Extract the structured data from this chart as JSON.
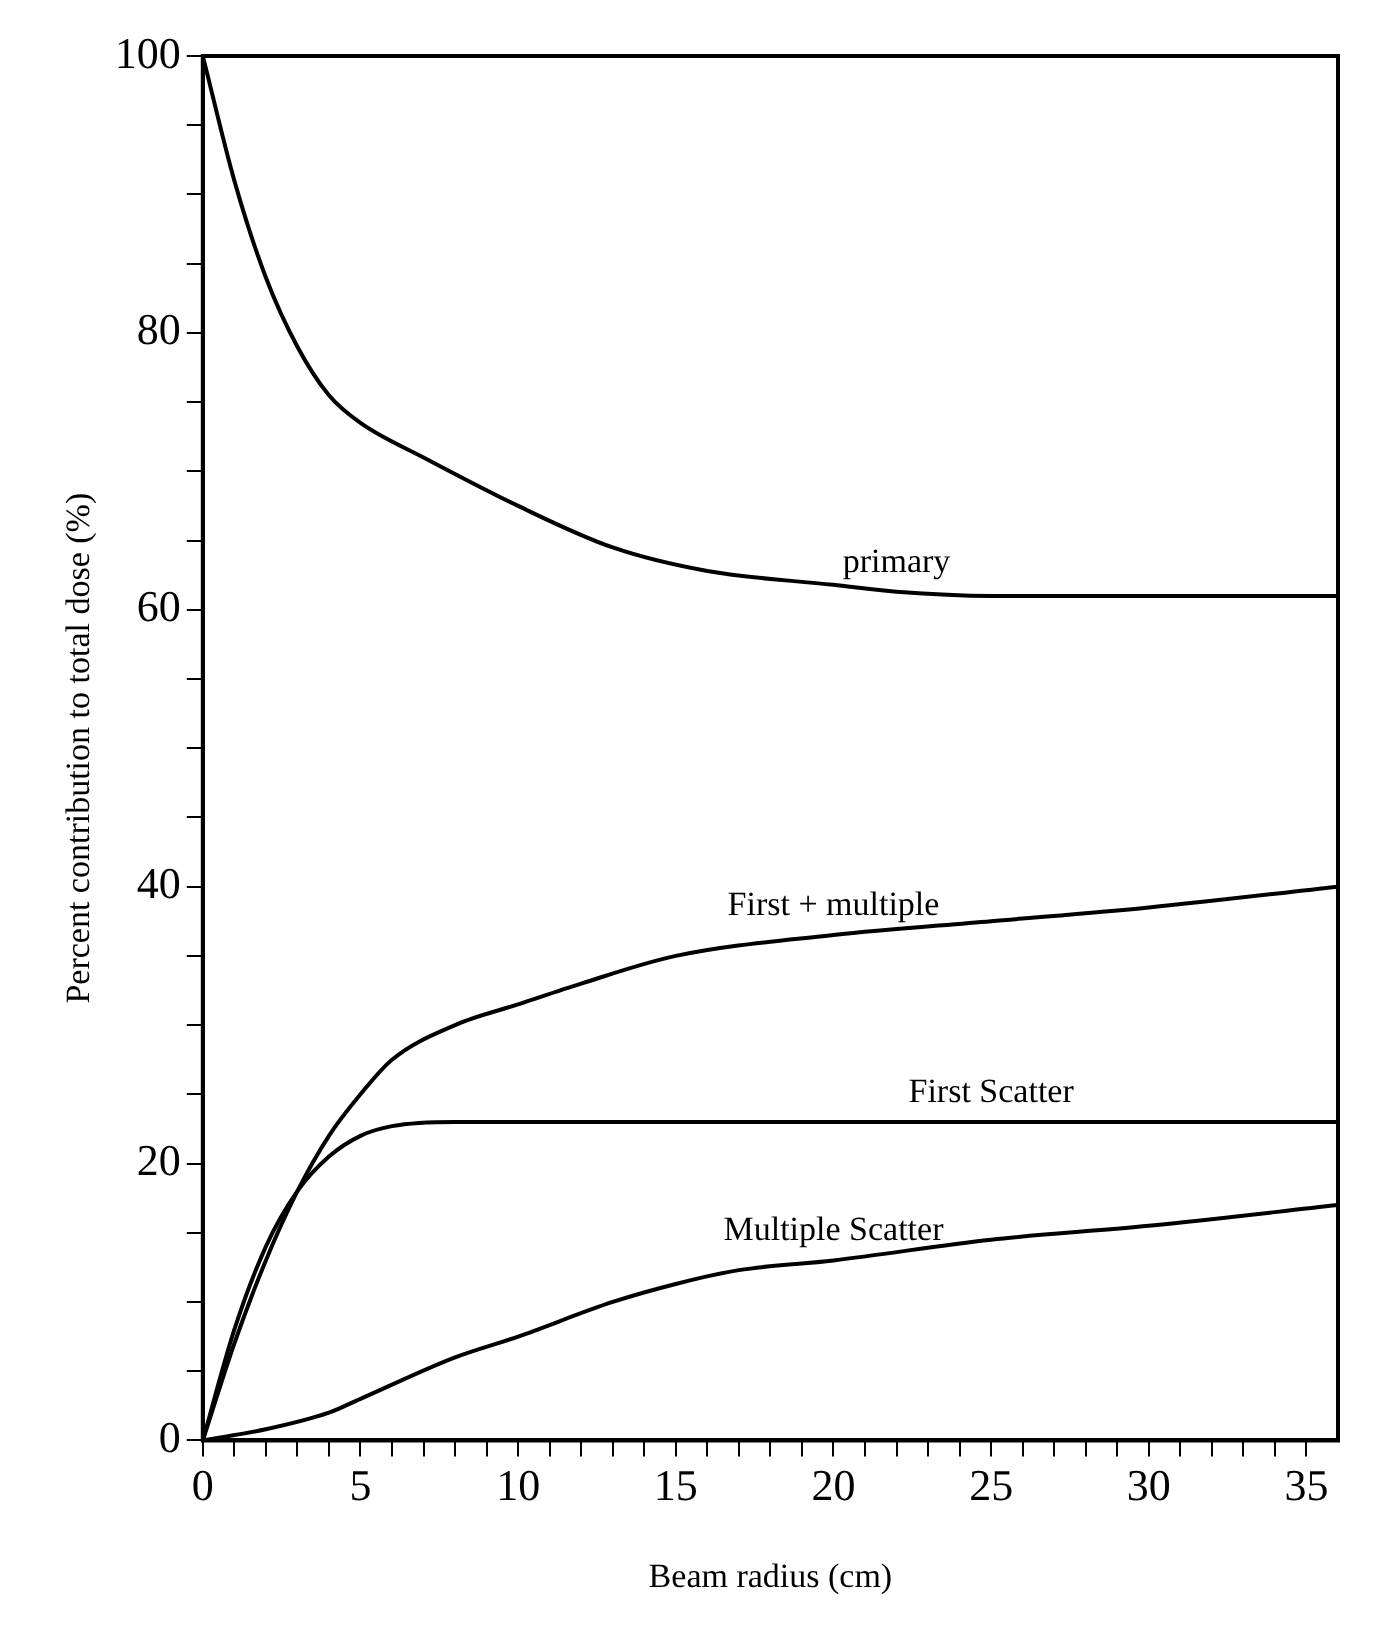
{
  "chart_data": {
    "type": "line",
    "xlabel": "Beam radius (cm)",
    "ylabel": "Percent contribution to total dose (%)",
    "xlim": [
      0,
      36
    ],
    "ylim": [
      0,
      100
    ],
    "xticks": [
      0,
      {
        "value": 1,
        "label": null
      },
      {
        "value": 2,
        "label": null
      },
      {
        "value": 3,
        "label": null
      },
      {
        "value": 4,
        "label": null
      },
      5,
      {
        "value": 6,
        "label": null
      },
      {
        "value": 7,
        "label": null
      },
      {
        "value": 8,
        "label": null
      },
      {
        "value": 9,
        "label": null
      },
      10,
      {
        "value": 11,
        "label": null
      },
      {
        "value": 12,
        "label": null
      },
      {
        "value": 13,
        "label": null
      },
      {
        "value": 14,
        "label": null
      },
      15,
      {
        "value": 16,
        "label": null
      },
      {
        "value": 17,
        "label": null
      },
      {
        "value": 18,
        "label": null
      },
      {
        "value": 19,
        "label": null
      },
      20,
      {
        "value": 21,
        "label": null
      },
      {
        "value": 22,
        "label": null
      },
      {
        "value": 23,
        "label": null
      },
      {
        "value": 24,
        "label": null
      },
      25,
      {
        "value": 26,
        "label": null
      },
      {
        "value": 27,
        "label": null
      },
      {
        "value": 28,
        "label": null
      },
      {
        "value": 29,
        "label": null
      },
      30,
      {
        "value": 31,
        "label": null
      },
      {
        "value": 32,
        "label": null
      },
      {
        "value": 33,
        "label": null
      },
      {
        "value": 34,
        "label": null
      },
      35
    ],
    "yticks": [
      0,
      {
        "value": 5,
        "label": null
      },
      {
        "value": 10,
        "label": null
      },
      {
        "value": 15,
        "label": null
      },
      20,
      {
        "value": 25,
        "label": null
      },
      {
        "value": 30,
        "label": null
      },
      {
        "value": 35,
        "label": null
      },
      40,
      {
        "value": 45,
        "label": null
      },
      {
        "value": 50,
        "label": null
      },
      {
        "value": 55,
        "label": null
      },
      60,
      {
        "value": 65,
        "label": null
      },
      {
        "value": 70,
        "label": null
      },
      {
        "value": 75,
        "label": null
      },
      80,
      {
        "value": 85,
        "label": null
      },
      {
        "value": 90,
        "label": null
      },
      {
        "value": 95,
        "label": null
      },
      100
    ],
    "grid": false,
    "legend": false,
    "marker": "none",
    "line_style": "solid",
    "series": [
      {
        "name": "primary",
        "color": "#000000",
        "x": [
          0,
          1,
          2,
          3,
          4,
          5,
          7,
          10,
          13,
          16,
          20,
          22,
          25,
          30,
          36
        ],
        "values": [
          100,
          91,
          84,
          79,
          75.5,
          73.5,
          71,
          67.5,
          64.5,
          62.8,
          61.8,
          61.3,
          61,
          61,
          61
        ]
      },
      {
        "name": "First + multiple",
        "color": "#000000",
        "x": [
          0,
          1,
          2,
          3,
          4,
          5,
          6,
          8,
          10,
          12,
          15,
          20,
          25,
          30,
          36
        ],
        "values": [
          0,
          7,
          13,
          18,
          22,
          25,
          27.5,
          30,
          31.5,
          33,
          35,
          36.5,
          37.5,
          38.5,
          40
        ]
      },
      {
        "name": "First Scatter",
        "color": "#000000",
        "x": [
          0,
          1,
          2,
          3,
          4,
          5,
          6,
          8,
          15,
          25,
          36
        ],
        "values": [
          0,
          8,
          14,
          18,
          20.5,
          22,
          22.7,
          23,
          23,
          23,
          23
        ]
      },
      {
        "name": "Multiple Scatter",
        "color": "#000000",
        "x": [
          0,
          2,
          4,
          5,
          8,
          10,
          13,
          15,
          17,
          20,
          25,
          30,
          36
        ],
        "values": [
          0,
          0.8,
          2,
          3,
          6,
          7.5,
          10,
          11.3,
          12.3,
          13,
          14.5,
          15.5,
          17
        ]
      }
    ]
  }
}
